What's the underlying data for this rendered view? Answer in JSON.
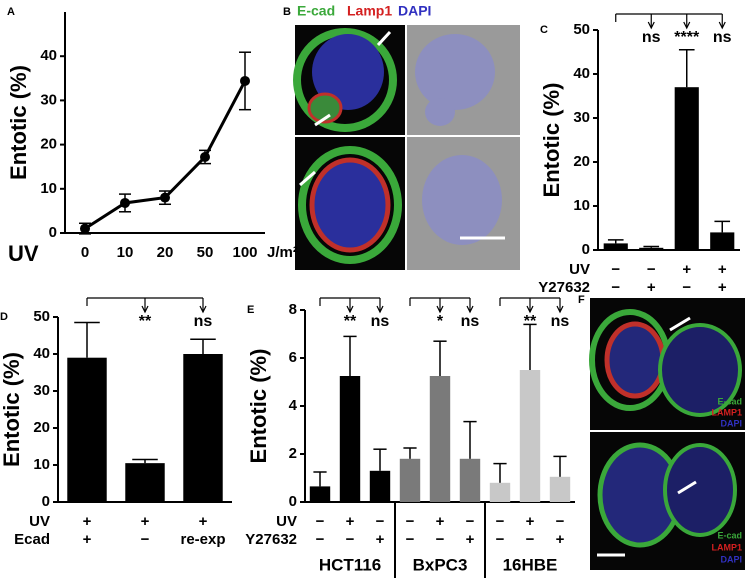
{
  "chart_data": [
    {
      "type": "line",
      "letter": "A",
      "y_label": "Entotic (%)",
      "x_label": "UV",
      "x_unit": "J/m²",
      "categories": [
        "0",
        "10",
        "20",
        "50",
        "100"
      ],
      "values": [
        1,
        6.8,
        8,
        17.2,
        34.4
      ],
      "errors": [
        1.2,
        2,
        1.5,
        1.5,
        6.5
      ],
      "color": "#000000",
      "ylim": [
        0,
        50
      ],
      "yticks": [
        0,
        10,
        20,
        30,
        40
      ]
    },
    {
      "type": "bar",
      "letter": "C",
      "y_label": "Entotic (%)",
      "values": [
        1.5,
        0.5,
        37,
        4
      ],
      "errors": [
        0.8,
        0.3,
        8.5,
        2.5
      ],
      "color": "#000000",
      "ylim": [
        0,
        50
      ],
      "yticks": [
        0,
        10,
        20,
        30,
        40,
        50
      ],
      "significance": [
        null,
        "ns",
        "****",
        "ns"
      ],
      "rows": [
        {
          "label": "UV",
          "values": [
            "−",
            "−",
            "+",
            "+"
          ]
        },
        {
          "label": "Y27632",
          "values": [
            "−",
            "+",
            "−",
            "+"
          ]
        }
      ]
    },
    {
      "type": "bar",
      "letter": "D",
      "y_label": "Entotic (%)",
      "values": [
        39,
        10.5,
        40
      ],
      "errors": [
        9.5,
        1,
        4
      ],
      "color": "#000000",
      "ylim": [
        0,
        50
      ],
      "yticks": [
        0,
        10,
        20,
        30,
        40,
        50
      ],
      "significance": [
        null,
        "**",
        "ns"
      ],
      "rows": [
        {
          "label": "UV",
          "values": [
            "+",
            "+",
            "+"
          ]
        },
        {
          "label": "Ecad",
          "values": [
            "+",
            "−",
            "re-exp"
          ]
        }
      ]
    },
    {
      "type": "bar",
      "letter": "E",
      "y_label": "Entotic (%)",
      "ylim": [
        0,
        8
      ],
      "yticks": [
        0,
        2,
        4,
        6,
        8
      ],
      "groups": [
        {
          "name": "HCT116",
          "color": "#000000",
          "values": [
            0.65,
            5.25,
            1.3
          ],
          "errors": [
            0.6,
            1.65,
            0.9
          ],
          "significance": [
            null,
            "**",
            "ns"
          ]
        },
        {
          "name": "BxPC3",
          "color": "#7a7a7a",
          "values": [
            1.8,
            5.25,
            1.8
          ],
          "errors": [
            0.45,
            1.45,
            1.55
          ],
          "significance": [
            null,
            "*",
            "ns"
          ]
        },
        {
          "name": "16HBE",
          "color": "#c8c8c8",
          "values": [
            0.8,
            5.5,
            1.05
          ],
          "errors": [
            0.8,
            1.9,
            0.85
          ],
          "significance": [
            null,
            "**",
            "ns"
          ]
        }
      ],
      "rows": [
        {
          "label": "UV",
          "values": [
            "−",
            "+",
            "−",
            "−",
            "+",
            "−",
            "−",
            "+",
            "−"
          ]
        },
        {
          "label": "Y27632",
          "values": [
            "−",
            "−",
            "+",
            "−",
            "−",
            "+",
            "−",
            "−",
            "+"
          ]
        }
      ]
    }
  ],
  "images": [
    {
      "letter": "B",
      "labels": [
        "E-cad",
        "Lamp1",
        "DAPI"
      ]
    },
    {
      "letter": "F",
      "tiles": [
        [
          "E-cad",
          "LAMP1",
          "DAPI"
        ],
        [
          "E-cad",
          "LAMP1",
          "DAPI"
        ]
      ]
    }
  ]
}
